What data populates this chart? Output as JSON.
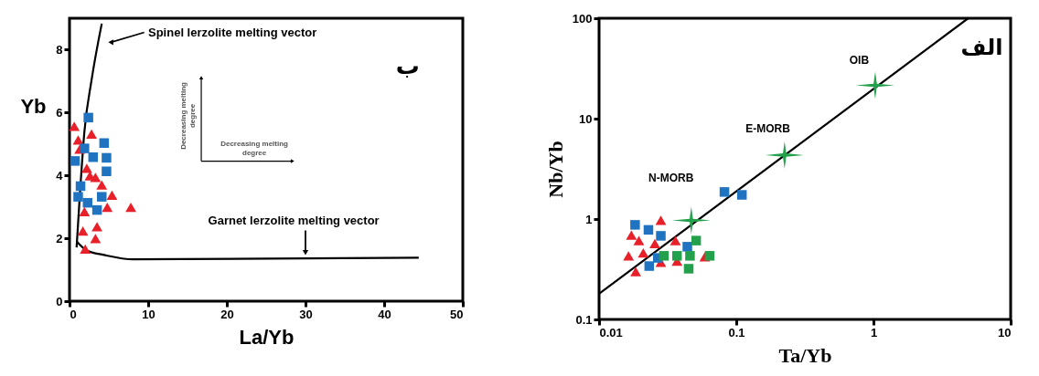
{
  "chart_data": [
    {
      "type": "scatter",
      "xlabel": "La/Yb",
      "ylabel": "Yb",
      "xlim": [
        0,
        50
      ],
      "ylim": [
        0,
        9
      ],
      "xticks": [
        0,
        10,
        20,
        30,
        40,
        50
      ],
      "yticks": [
        0,
        2,
        4,
        6,
        8
      ],
      "grid": false,
      "series": [
        {
          "type": "line",
          "color": "#000000",
          "x": [
            0.9,
            1.3,
            1.9,
            2.8,
            4.1
          ],
          "values": [
            1.71,
            3.32,
            5.41,
            7.03,
            8.83
          ]
        },
        {
          "type": "line",
          "color": "#000000",
          "x": [
            0.9,
            2.2,
            4.4,
            8.1,
            44.4
          ],
          "values": [
            1.9,
            1.61,
            1.47,
            1.33,
            1.38
          ]
        },
        {
          "marker": "triangle",
          "color": "#e8202a",
          "x": [
            0.6,
            2.8,
            1.1,
            2.2,
            3.3,
            4.1,
            5.4,
            4.8,
            7.8,
            1.9,
            1.7,
            3.5,
            3.3,
            2.0,
            1.3,
            2.6
          ],
          "values": [
            5.56,
            5.32,
            5.13,
            4.23,
            3.94,
            3.7,
            3.37,
            2.99,
            2.99,
            2.85,
            2.23,
            2.37,
            1.99,
            1.66,
            4.84,
            3.99
          ]
        },
        {
          "marker": "square",
          "color": "#1f73c0",
          "x": [
            2.4,
            4.4,
            4.7,
            4.7,
            1.9,
            3.0,
            0.7,
            1.4,
            1.1,
            2.3,
            3.5,
            4.1
          ],
          "values": [
            5.84,
            5.03,
            4.56,
            4.13,
            4.86,
            4.58,
            4.46,
            3.66,
            3.32,
            3.13,
            2.9,
            3.32
          ]
        }
      ],
      "annotations": [
        "Spinel lerzolite melting vector",
        {
          "text": "Garnet lerzolite melting vector",
          "x": 30,
          "y": 1.4
        },
        "ب",
        "Decreasing melting\ndegree",
        "Decreasing melting\ndegree"
      ]
    },
    {
      "type": "scatter",
      "xlabel": "Ta/Yb",
      "ylabel": "Nb/Yb",
      "log": "xy",
      "xlim": [
        0.01,
        10
      ],
      "ylim": [
        0.1,
        100
      ],
      "xticks": [
        0.01,
        0.1,
        1,
        10
      ],
      "yticks": [
        0.1,
        1,
        10,
        100
      ],
      "grid": false,
      "series": [
        {
          "type": "line",
          "color": "#000000",
          "x": [
            0.01,
            4.9
          ],
          "values": [
            0.18,
            100
          ]
        },
        {
          "marker": "triangle",
          "color": "#e8202a",
          "x": [
            0.0282,
            0.0172,
            0.0195,
            0.0164,
            0.0185,
            0.0255,
            0.036,
            0.0282,
            0.037,
            0.059,
            0.021
          ],
          "values": [
            0.97,
            0.69,
            0.61,
            0.43,
            0.3,
            0.57,
            0.61,
            0.37,
            0.38,
            0.42,
            0.46
          ]
        },
        {
          "marker": "square",
          "color": "#1f73c0",
          "x": [
            0.082,
            0.11,
            0.0183,
            0.0229,
            0.0282,
            0.0232,
            0.0268,
            0.044
          ],
          "values": [
            1.86,
            1.74,
            0.875,
            0.78,
            0.68,
            0.34,
            0.41,
            0.53
          ]
        },
        {
          "marker": "square",
          "color": "#22a04b",
          "x": [
            0.0297,
            0.037,
            0.046,
            0.051,
            0.045,
            0.064
          ],
          "values": [
            0.43,
            0.43,
            0.43,
            0.61,
            0.32,
            0.43
          ]
        },
        {
          "marker": "star",
          "color": "#22a04b",
          "x": [
            0.047,
            0.225,
            1.03
          ],
          "values": [
            0.97,
            4.34,
            21.5
          ]
        }
      ],
      "annotations": [
        "N-MORB",
        "E-MORB",
        "OIB",
        "الف"
      ]
    }
  ]
}
